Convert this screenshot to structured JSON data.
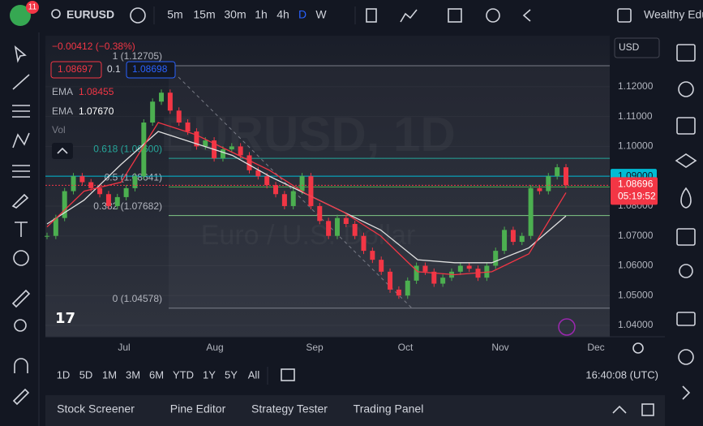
{
  "top_bar": {
    "logo_badge": "11",
    "symbol": "EURUSD",
    "timeframes": [
      "5m",
      "15m",
      "30m",
      "1h",
      "4h",
      "D",
      "W"
    ],
    "account": "Wealthy Edu"
  },
  "legend": {
    "change": "−0.00412 (−0.38%)",
    "bid": "1.08697",
    "spread": "0.1",
    "ask": "1.08698",
    "ema1_label": "EMA",
    "ema1_value": "1.08455",
    "ema2_label": "EMA",
    "ema2_value": "1.07670",
    "vol": "Vol"
  },
  "watermark": {
    "symbol": "EURUSD, 1D",
    "name": "Euro / U.S. Dollar"
  },
  "currency": "USD",
  "chart": {
    "ylim": [
      1.0362,
      1.1371
    ],
    "price_ticks": [
      {
        "value": 1.12,
        "label": "1.12000"
      },
      {
        "value": 1.11,
        "label": "1.11000"
      },
      {
        "value": 1.1,
        "label": "1.10000"
      },
      {
        "value": 1.08,
        "label": "1.08000"
      },
      {
        "value": 1.07,
        "label": "1.07000"
      },
      {
        "value": 1.06,
        "label": "1.06000"
      },
      {
        "value": 1.05,
        "label": "1.05000"
      },
      {
        "value": 1.04,
        "label": "1.04000"
      }
    ],
    "level": {
      "value": 1.09,
      "label": "1.09000"
    },
    "last": {
      "value": 1.08696,
      "label": "1.08696",
      "countdown": "05:19:52"
    },
    "fib": [
      {
        "value": 1.12705,
        "label": "1 (1.12705)"
      },
      {
        "value": 1.096,
        "label": "0.618 (1.09600)"
      },
      {
        "value": 1.08641,
        "label": "0.5 (1.08641)"
      },
      {
        "value": 1.07682,
        "label": "0.382 (1.07682)"
      },
      {
        "value": 1.04578,
        "label": "0 (1.04578)"
      }
    ],
    "months": [
      "Jul",
      "Aug",
      "Sep",
      "Oct",
      "Nov",
      "Dec"
    ],
    "closes": [
      1.07,
      1.076,
      1.085,
      1.09,
      1.088,
      1.086,
      1.084,
      1.08,
      1.083,
      1.086,
      1.09,
      1.108,
      1.115,
      1.118,
      1.112,
      1.108,
      1.105,
      1.1,
      1.102,
      1.096,
      1.099,
      1.1,
      1.097,
      1.092,
      1.09,
      1.087,
      1.084,
      1.08,
      1.085,
      1.09,
      1.08,
      1.075,
      1.07,
      1.076,
      1.074,
      1.07,
      1.065,
      1.062,
      1.058,
      1.052,
      1.05,
      1.055,
      1.06,
      1.058,
      1.054,
      1.056,
      1.058,
      1.06,
      1.059,
      1.056,
      1.06,
      1.065,
      1.072,
      1.068,
      1.07,
      1.086,
      1.085,
      1.09,
      1.093,
      1.087
    ],
    "ema_fast": [
      1.073,
      1.085,
      1.088,
      1.108,
      1.104,
      1.098,
      1.092,
      1.084,
      1.078,
      1.07,
      1.058,
      1.057,
      1.058,
      1.064,
      1.0845
    ],
    "ema_slow": [
      1.074,
      1.082,
      1.094,
      1.105,
      1.101,
      1.097,
      1.09,
      1.084,
      1.078,
      1.072,
      1.062,
      1.061,
      1.061,
      1.066,
      1.0767
    ]
  },
  "ranges": [
    "1D",
    "5D",
    "1M",
    "3M",
    "6M",
    "YTD",
    "1Y",
    "5Y",
    "All"
  ],
  "clock": "16:40:08 (UTC)",
  "bottom_tabs": [
    "Stock Screener",
    "Pine Editor",
    "Strategy Tester",
    "Trading Panel"
  ]
}
